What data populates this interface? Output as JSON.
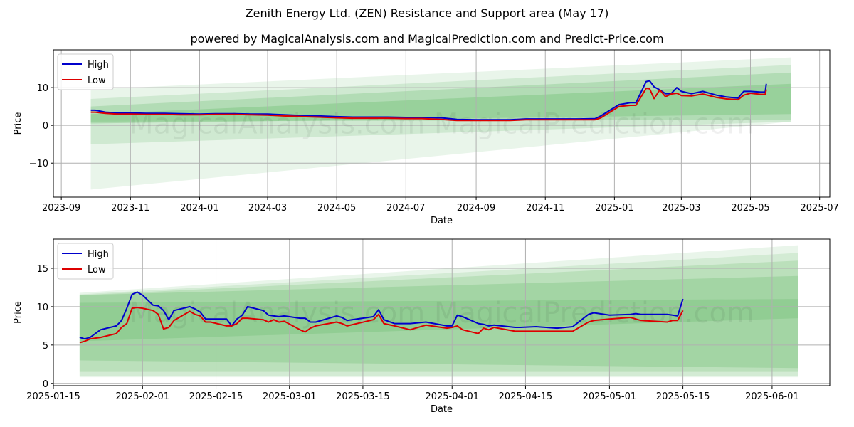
{
  "title": "Zenith Energy Ltd. (ZEN) Resistance and Support area (May 17)",
  "subtitle": "powered by MagicalAnalysis.com and MagicalPrediction.com and Predict-Price.com",
  "watermark": "MagicalAnalysis.com    MagicalPrediction.com",
  "colors": {
    "high": "#0000cc",
    "low": "#dd0000",
    "band": "#4caf50",
    "grid": "#b0b0b0"
  },
  "chart_data": [
    {
      "type": "line",
      "xlabel": "Date",
      "ylabel": "Price",
      "xlim": [
        "2023-08-25",
        "2025-07-10"
      ],
      "ylim": [
        -19,
        20
      ],
      "grid": true,
      "legend": "top-left",
      "legend_labels": [
        "High",
        "Low"
      ],
      "x_ticks": [
        "2023-09-01",
        "2023-11-01",
        "2024-01-01",
        "2024-03-01",
        "2024-05-01",
        "2024-07-01",
        "2024-09-01",
        "2024-11-01",
        "2025-01-01",
        "2025-03-01",
        "2025-05-01",
        "2025-07-01"
      ],
      "x_tick_labels": [
        "2023-09",
        "2023-11",
        "2024-01",
        "2024-03",
        "2024-05",
        "2024-07",
        "2024-09",
        "2024-11",
        "2025-01",
        "2025-03",
        "2025-05",
        "2025-07"
      ],
      "y_ticks": [
        -10,
        0,
        10
      ],
      "y_tick_labels": [
        "−10",
        "0",
        "10"
      ],
      "bands": [
        {
          "x": [
            "2023-09-27",
            "2025-06-06"
          ],
          "upper": [
            9.5,
            18.0
          ],
          "lower": [
            -17.0,
            1.0
          ],
          "alpha": 0.12
        },
        {
          "x": [
            "2023-09-27",
            "2025-06-06"
          ],
          "upper": [
            7.0,
            16.0
          ],
          "lower": [
            -5.0,
            1.0
          ],
          "alpha": 0.16
        },
        {
          "x": [
            "2023-09-27",
            "2025-06-06"
          ],
          "upper": [
            5.0,
            14.0
          ],
          "lower": [
            1.0,
            1.5
          ],
          "alpha": 0.22
        },
        {
          "x": [
            "2023-09-27",
            "2025-06-06"
          ],
          "upper": [
            3.0,
            11.0
          ],
          "lower": [
            0.5,
            3.0
          ],
          "alpha": 0.25
        }
      ],
      "series": [
        {
          "name": "High",
          "x": [
            "2023-09-27",
            "2023-10-01",
            "2023-10-10",
            "2023-10-20",
            "2023-11-01",
            "2023-11-15",
            "2023-12-01",
            "2023-12-15",
            "2024-01-01",
            "2024-01-15",
            "2024-02-01",
            "2024-02-15",
            "2024-03-01",
            "2024-03-15",
            "2024-04-01",
            "2024-04-15",
            "2024-05-01",
            "2024-05-15",
            "2024-06-01",
            "2024-06-15",
            "2024-07-01",
            "2024-07-15",
            "2024-08-01",
            "2024-08-15",
            "2024-09-01",
            "2024-09-15",
            "2024-10-01",
            "2024-10-15",
            "2024-11-01",
            "2024-11-15",
            "2024-12-01",
            "2024-12-15",
            "2024-12-20",
            "2024-12-28",
            "2025-01-05",
            "2025-01-15",
            "2025-01-20",
            "2025-01-29",
            "2025-02-01",
            "2025-02-05",
            "2025-02-10",
            "2025-02-15",
            "2025-02-20",
            "2025-02-25",
            "2025-03-01",
            "2025-03-10",
            "2025-03-20",
            "2025-04-01",
            "2025-04-10",
            "2025-04-20",
            "2025-04-25",
            "2025-05-01",
            "2025-05-10",
            "2025-05-14",
            "2025-05-15"
          ],
          "values": [
            4.0,
            4.0,
            3.5,
            3.3,
            3.3,
            3.2,
            3.2,
            3.1,
            3.0,
            3.1,
            3.1,
            3.0,
            3.0,
            2.8,
            2.6,
            2.5,
            2.3,
            2.2,
            2.2,
            2.2,
            2.1,
            2.1,
            2.0,
            1.6,
            1.5,
            1.5,
            1.5,
            1.7,
            1.7,
            1.7,
            1.7,
            1.8,
            2.5,
            4.0,
            5.5,
            6.0,
            6.0,
            11.6,
            11.8,
            10.2,
            9.4,
            8.4,
            8.4,
            10.0,
            9.0,
            8.4,
            9.0,
            8.0,
            7.5,
            7.2,
            9.0,
            9.0,
            8.8,
            8.8,
            11.0
          ]
        },
        {
          "name": "Low",
          "x": [
            "2023-09-27",
            "2023-10-01",
            "2023-10-10",
            "2023-10-20",
            "2023-11-01",
            "2023-11-15",
            "2023-12-01",
            "2023-12-15",
            "2024-01-01",
            "2024-01-15",
            "2024-02-01",
            "2024-02-15",
            "2024-03-01",
            "2024-03-15",
            "2024-04-01",
            "2024-04-15",
            "2024-05-01",
            "2024-05-15",
            "2024-06-01",
            "2024-06-15",
            "2024-07-01",
            "2024-07-15",
            "2024-08-01",
            "2024-08-15",
            "2024-09-01",
            "2024-09-15",
            "2024-10-01",
            "2024-10-15",
            "2024-11-01",
            "2024-11-15",
            "2024-12-01",
            "2024-12-15",
            "2024-12-20",
            "2024-12-28",
            "2025-01-05",
            "2025-01-15",
            "2025-01-20",
            "2025-01-29",
            "2025-02-01",
            "2025-02-05",
            "2025-02-10",
            "2025-02-15",
            "2025-02-20",
            "2025-02-25",
            "2025-03-01",
            "2025-03-10",
            "2025-03-20",
            "2025-04-01",
            "2025-04-10",
            "2025-04-20",
            "2025-04-25",
            "2025-05-01",
            "2025-05-10",
            "2025-05-14",
            "2025-05-15"
          ],
          "values": [
            3.5,
            3.5,
            3.2,
            3.0,
            3.0,
            2.9,
            2.9,
            2.8,
            2.8,
            2.9,
            2.9,
            2.8,
            2.7,
            2.5,
            2.3,
            2.2,
            2.0,
            1.9,
            1.9,
            1.9,
            1.8,
            1.8,
            1.6,
            1.3,
            1.3,
            1.3,
            1.3,
            1.5,
            1.5,
            1.5,
            1.5,
            1.5,
            2.0,
            3.5,
            5.0,
            5.3,
            5.3,
            9.8,
            9.7,
            7.1,
            9.4,
            7.6,
            8.3,
            8.5,
            7.9,
            7.8,
            8.3,
            7.4,
            7.0,
            6.8,
            8.0,
            8.5,
            8.2,
            8.2,
            9.5
          ]
        }
      ]
    },
    {
      "type": "line",
      "xlabel": "Date",
      "ylabel": "Price",
      "xlim": [
        "2025-01-15",
        "2025-06-12"
      ],
      "ylim": [
        -0.3,
        18.8
      ],
      "grid": true,
      "legend": "top-left",
      "legend_labels": [
        "High",
        "Low"
      ],
      "x_ticks": [
        "2025-01-15",
        "2025-02-01",
        "2025-02-15",
        "2025-03-01",
        "2025-03-15",
        "2025-04-01",
        "2025-04-15",
        "2025-05-01",
        "2025-05-15",
        "2025-06-01"
      ],
      "x_tick_labels": [
        "2025-01-15",
        "2025-02-01",
        "2025-02-15",
        "2025-03-01",
        "2025-03-15",
        "2025-04-01",
        "2025-04-15",
        "2025-05-01",
        "2025-05-15",
        "2025-06-01"
      ],
      "y_ticks": [
        0,
        5,
        10,
        15
      ],
      "y_tick_labels": [
        "0",
        "5",
        "10",
        "15"
      ],
      "bands": [
        {
          "x": [
            "2025-01-20",
            "2025-06-06"
          ],
          "upper": [
            11.8,
            18.0
          ],
          "lower": [
            0.8,
            0.8
          ],
          "alpha": 0.12
        },
        {
          "x": [
            "2025-01-20",
            "2025-06-06"
          ],
          "upper": [
            11.6,
            17.0
          ],
          "lower": [
            1.0,
            1.0
          ],
          "alpha": 0.14
        },
        {
          "x": [
            "2025-01-20",
            "2025-06-06"
          ],
          "upper": [
            11.5,
            16.0
          ],
          "lower": [
            1.5,
            1.5
          ],
          "alpha": 0.18
        },
        {
          "x": [
            "2025-01-20",
            "2025-06-06"
          ],
          "upper": [
            11.5,
            14.0
          ],
          "lower": [
            3.0,
            2.0
          ],
          "alpha": 0.22
        },
        {
          "x": [
            "2025-01-20",
            "2025-06-06"
          ],
          "upper": [
            10.5,
            11.0
          ],
          "lower": [
            5.5,
            8.5
          ],
          "alpha": 0.2
        }
      ],
      "series": [
        {
          "name": "High",
          "x": [
            "2025-01-20",
            "2025-01-21",
            "2025-01-22",
            "2025-01-24",
            "2025-01-27",
            "2025-01-28",
            "2025-01-29",
            "2025-01-30",
            "2025-01-31",
            "2025-02-01",
            "2025-02-03",
            "2025-02-04",
            "2025-02-05",
            "2025-02-06",
            "2025-02-07",
            "2025-02-10",
            "2025-02-11",
            "2025-02-12",
            "2025-02-13",
            "2025-02-14",
            "2025-02-17",
            "2025-02-18",
            "2025-02-19",
            "2025-02-20",
            "2025-02-21",
            "2025-02-24",
            "2025-02-25",
            "2025-02-26",
            "2025-02-27",
            "2025-02-28",
            "2025-03-03",
            "2025-03-04",
            "2025-03-05",
            "2025-03-06",
            "2025-03-10",
            "2025-03-11",
            "2025-03-12",
            "2025-03-17",
            "2025-03-18",
            "2025-03-19",
            "2025-03-21",
            "2025-03-24",
            "2025-03-27",
            "2025-03-31",
            "2025-04-01",
            "2025-04-02",
            "2025-04-03",
            "2025-04-06",
            "2025-04-07",
            "2025-04-08",
            "2025-04-09",
            "2025-04-13",
            "2025-04-14",
            "2025-04-17",
            "2025-04-21",
            "2025-04-24",
            "2025-04-27",
            "2025-04-28",
            "2025-05-01",
            "2025-05-05",
            "2025-05-06",
            "2025-05-07",
            "2025-05-12",
            "2025-05-13",
            "2025-05-14",
            "2025-05-15"
          ],
          "values": [
            6.0,
            5.8,
            6.0,
            7.0,
            7.5,
            8.2,
            9.8,
            11.6,
            11.9,
            11.5,
            10.2,
            10.1,
            9.5,
            8.3,
            9.5,
            10.0,
            9.7,
            9.3,
            8.4,
            8.4,
            8.4,
            7.5,
            8.4,
            8.9,
            10.0,
            9.5,
            8.9,
            8.8,
            8.7,
            8.8,
            8.5,
            8.5,
            8.0,
            8.0,
            8.8,
            8.6,
            8.2,
            8.7,
            9.6,
            8.3,
            7.8,
            7.8,
            8.0,
            7.5,
            7.5,
            8.9,
            8.7,
            7.8,
            7.7,
            7.5,
            7.6,
            7.3,
            7.3,
            7.4,
            7.2,
            7.4,
            9.0,
            9.2,
            8.9,
            9.0,
            9.1,
            9.0,
            9.0,
            8.9,
            8.8,
            11.0
          ]
        },
        {
          "name": "Low",
          "x": [
            "2025-01-20",
            "2025-01-21",
            "2025-01-22",
            "2025-01-24",
            "2025-01-27",
            "2025-01-28",
            "2025-01-29",
            "2025-01-30",
            "2025-01-31",
            "2025-02-01",
            "2025-02-03",
            "2025-02-04",
            "2025-02-05",
            "2025-02-06",
            "2025-02-07",
            "2025-02-10",
            "2025-02-11",
            "2025-02-12",
            "2025-02-13",
            "2025-02-14",
            "2025-02-17",
            "2025-02-18",
            "2025-02-19",
            "2025-02-20",
            "2025-02-21",
            "2025-02-24",
            "2025-02-25",
            "2025-02-26",
            "2025-02-27",
            "2025-02-28",
            "2025-03-03",
            "2025-03-04",
            "2025-03-05",
            "2025-03-06",
            "2025-03-10",
            "2025-03-11",
            "2025-03-12",
            "2025-03-17",
            "2025-03-18",
            "2025-03-19",
            "2025-03-21",
            "2025-03-24",
            "2025-03-27",
            "2025-03-31",
            "2025-04-01",
            "2025-04-02",
            "2025-04-03",
            "2025-04-06",
            "2025-04-07",
            "2025-04-08",
            "2025-04-09",
            "2025-04-13",
            "2025-04-14",
            "2025-04-17",
            "2025-04-21",
            "2025-04-24",
            "2025-04-27",
            "2025-04-28",
            "2025-05-01",
            "2025-05-05",
            "2025-05-06",
            "2025-05-07",
            "2025-05-12",
            "2025-05-13",
            "2025-05-14",
            "2025-05-15"
          ],
          "values": [
            5.3,
            5.5,
            5.8,
            6.0,
            6.5,
            7.3,
            7.8,
            9.8,
            9.9,
            9.8,
            9.5,
            9.0,
            7.1,
            7.3,
            8.2,
            9.4,
            9.0,
            8.8,
            8.0,
            8.0,
            7.5,
            7.5,
            7.8,
            8.5,
            8.5,
            8.3,
            8.0,
            8.3,
            8.0,
            8.1,
            7.0,
            6.7,
            7.2,
            7.5,
            8.0,
            7.8,
            7.5,
            8.3,
            9.0,
            7.8,
            7.5,
            7.0,
            7.6,
            7.2,
            7.3,
            7.5,
            7.0,
            6.5,
            7.2,
            7.0,
            7.3,
            6.8,
            6.8,
            6.8,
            6.8,
            6.8,
            8.0,
            8.2,
            8.4,
            8.6,
            8.4,
            8.2,
            8.0,
            8.2,
            8.2,
            9.5
          ]
        }
      ]
    }
  ]
}
